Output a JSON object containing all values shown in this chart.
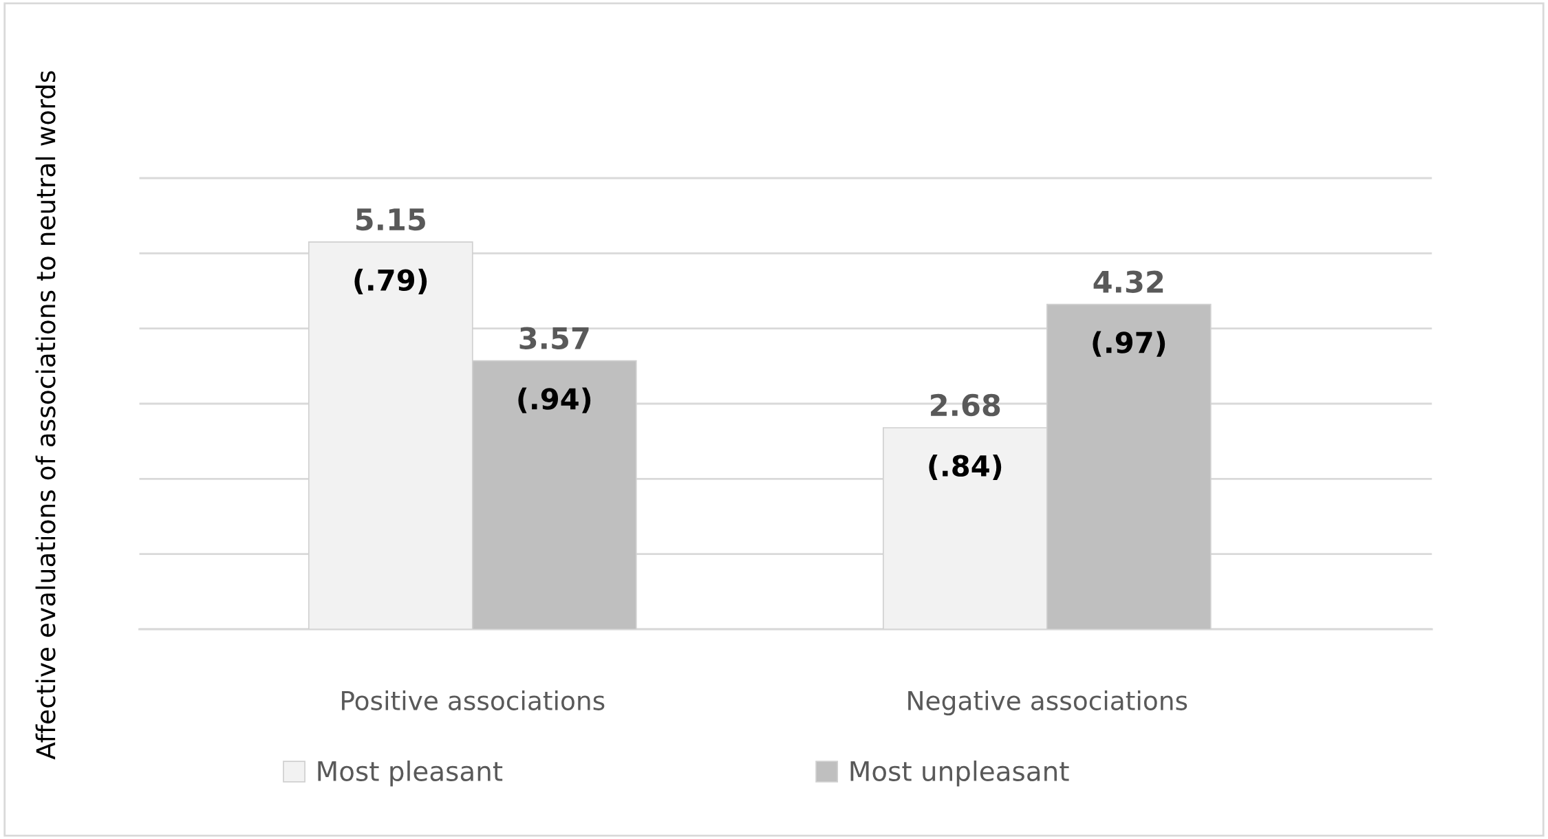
{
  "chart_data": {
    "type": "bar",
    "ylabel": "Affective evaluations of associations to neutral words",
    "categories": [
      "Positive associations",
      "Negative associations"
    ],
    "series": [
      {
        "name": "Most pleasant",
        "color": "#f2f2f2",
        "values": [
          5.15,
          2.68
        ]
      },
      {
        "name": "Most unpleasant",
        "color": "#bfbfbf",
        "values": [
          3.57,
          4.32
        ]
      }
    ],
    "data_labels": true,
    "annotations": [
      {
        "text": "(.79)",
        "x": "Positive associations",
        "y": 5.15
      },
      {
        "text": "(.84)",
        "x": "Negative associations",
        "y": 2.68
      },
      {
        "text": "(.94)",
        "x": "Positive associations",
        "y": 3.57
      },
      {
        "text": "(.97)",
        "x": "Negative associations",
        "y": 4.32
      }
    ],
    "grid": "y",
    "legend": "bottom",
    "tick_labels": "x"
  }
}
